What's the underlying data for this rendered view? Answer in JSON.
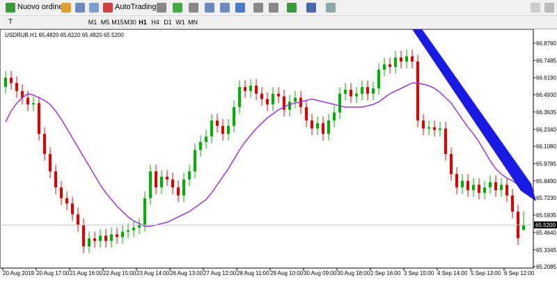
{
  "toolbar": {
    "new_order": "Nuovo ordine",
    "autotrading": "AutoTrading",
    "timeframes": [
      "M1",
      "M5",
      "M15",
      "M30",
      "H1",
      "H4",
      "D1",
      "W1",
      "MN"
    ]
  },
  "chart_data": {
    "type": "candlestick",
    "title": "USDRUB,H1  65.4820 65.6220 65.4820 65.5200",
    "categories": [
      "20 Aug 2019",
      null,
      null,
      null,
      null,
      null,
      "20 Aug 17:00",
      null,
      null,
      null,
      null,
      null,
      "21 Aug 16:00",
      null,
      null,
      null,
      null,
      null,
      "22 Aug 15:00",
      null,
      null,
      null,
      null,
      null,
      "23 Aug 14:00",
      null,
      null,
      null,
      null,
      null,
      "26 Aug 13:00",
      null,
      null,
      null,
      null,
      null,
      "27 Aug 12:00",
      null,
      null,
      null,
      null,
      null,
      "28 Aug 11:00",
      null,
      null,
      null,
      null,
      null,
      "29 Aug 10:00",
      null,
      null,
      null,
      null,
      null,
      "30 Aug 09:00",
      null,
      null,
      null,
      null,
      null,
      "30 Aug 18:00",
      null,
      null,
      null,
      null,
      null,
      "2 Sep 16:00",
      null,
      null,
      null,
      null,
      null,
      "3 Sep 15:00",
      null,
      null,
      null,
      null,
      null,
      "4 Sep 14:00",
      null,
      null,
      null,
      null,
      null,
      "5 Sep 13:00",
      null,
      null,
      null,
      null,
      null,
      "6 Sep 12:00",
      null,
      null,
      null
    ],
    "open": [
      66.55,
      66.62,
      66.58,
      66.52,
      66.47,
      66.42,
      66.43,
      66.2,
      66.05,
      65.92,
      65.8,
      65.72,
      65.68,
      65.6,
      65.52,
      65.36,
      65.42,
      65.4,
      65.44,
      65.4,
      65.45,
      65.43,
      65.47,
      65.48,
      65.5,
      65.52,
      65.72,
      65.92,
      65.8,
      65.88,
      65.86,
      65.8,
      65.74,
      65.86,
      65.92,
      66.08,
      66.14,
      66.18,
      66.3,
      66.26,
      66.2,
      66.26,
      66.4,
      66.55,
      66.52,
      66.56,
      66.5,
      66.46,
      66.42,
      66.5,
      66.48,
      66.38,
      66.44,
      66.47,
      66.4,
      66.3,
      66.24,
      66.28,
      66.2,
      66.3,
      66.36,
      66.5,
      66.53,
      66.48,
      66.5,
      66.55,
      66.5,
      66.54,
      66.68,
      66.72,
      66.7,
      66.77,
      66.74,
      66.78,
      66.74,
      66.3,
      66.24,
      66.25,
      66.23,
      66.24,
      66.05,
      65.9,
      65.8,
      65.85,
      65.78,
      65.82,
      65.76,
      65.8,
      65.84,
      65.78,
      65.82,
      65.74,
      65.62,
      65.482
    ],
    "high": [
      66.67,
      66.67,
      66.63,
      66.57,
      66.52,
      66.48,
      66.48,
      66.25,
      66.1,
      65.97,
      65.85,
      65.77,
      65.73,
      65.65,
      65.57,
      65.47,
      65.47,
      65.49,
      65.49,
      65.5,
      65.5,
      65.52,
      65.53,
      65.55,
      65.57,
      65.77,
      65.97,
      65.97,
      65.93,
      65.93,
      65.91,
      65.85,
      65.91,
      65.97,
      66.13,
      66.19,
      66.23,
      66.35,
      66.35,
      66.31,
      66.31,
      66.45,
      66.6,
      66.6,
      66.61,
      66.61,
      66.55,
      66.51,
      66.55,
      66.55,
      66.53,
      66.49,
      66.52,
      66.52,
      66.45,
      66.35,
      66.33,
      66.33,
      66.35,
      66.41,
      66.55,
      66.58,
      66.58,
      66.55,
      66.6,
      66.6,
      66.59,
      66.73,
      66.77,
      66.77,
      66.82,
      66.82,
      66.83,
      66.83,
      66.79,
      66.35,
      66.3,
      66.3,
      66.29,
      66.29,
      66.1,
      65.95,
      65.9,
      65.9,
      65.87,
      65.87,
      65.85,
      65.89,
      65.89,
      65.87,
      65.87,
      65.79,
      65.67,
      65.622
    ],
    "low": [
      66.5,
      66.53,
      66.47,
      66.42,
      66.37,
      66.37,
      66.15,
      66.0,
      65.87,
      65.75,
      65.67,
      65.63,
      65.55,
      65.47,
      65.31,
      65.31,
      65.35,
      65.35,
      65.35,
      65.35,
      65.38,
      65.38,
      65.42,
      65.43,
      65.45,
      65.47,
      65.67,
      65.75,
      65.75,
      65.81,
      65.75,
      65.69,
      65.69,
      65.81,
      65.87,
      66.03,
      66.09,
      66.13,
      66.21,
      66.15,
      66.15,
      66.21,
      66.35,
      66.47,
      66.47,
      66.45,
      66.41,
      66.37,
      66.37,
      66.43,
      66.33,
      66.33,
      66.39,
      66.35,
      66.25,
      66.19,
      66.19,
      66.15,
      66.15,
      66.25,
      66.31,
      66.45,
      66.43,
      66.43,
      66.45,
      66.45,
      66.45,
      66.49,
      66.63,
      66.65,
      66.65,
      66.69,
      66.69,
      66.69,
      66.25,
      66.19,
      66.19,
      66.18,
      66.18,
      66.0,
      65.85,
      65.75,
      65.75,
      65.73,
      65.73,
      65.71,
      65.71,
      65.75,
      65.73,
      65.73,
      65.69,
      65.57,
      65.37,
      65.482
    ],
    "close": [
      66.62,
      66.58,
      66.52,
      66.47,
      66.42,
      66.43,
      66.2,
      66.05,
      65.92,
      65.8,
      65.72,
      65.68,
      65.6,
      65.52,
      65.36,
      65.42,
      65.4,
      65.44,
      65.4,
      65.45,
      65.43,
      65.47,
      65.48,
      65.5,
      65.52,
      65.72,
      65.92,
      65.8,
      65.88,
      65.86,
      65.8,
      65.74,
      65.86,
      65.92,
      66.08,
      66.14,
      66.18,
      66.3,
      66.26,
      66.2,
      66.26,
      66.4,
      66.55,
      66.52,
      66.56,
      66.5,
      66.46,
      66.42,
      66.5,
      66.48,
      66.38,
      66.44,
      66.47,
      66.4,
      66.3,
      66.24,
      66.28,
      66.2,
      66.3,
      66.36,
      66.5,
      66.53,
      66.48,
      66.5,
      66.55,
      66.5,
      66.54,
      66.68,
      66.72,
      66.7,
      66.77,
      66.74,
      66.78,
      66.74,
      66.3,
      66.24,
      66.25,
      66.23,
      66.24,
      66.05,
      65.9,
      65.8,
      65.85,
      65.78,
      65.82,
      65.76,
      65.8,
      65.84,
      65.78,
      65.82,
      65.74,
      65.62,
      65.42,
      65.52
    ],
    "up_color": "#00b000",
    "down_color": "#e00000",
    "ma": {
      "color": "#9932e0",
      "values": [
        66.29,
        66.37,
        66.43,
        66.47,
        66.5,
        66.49,
        66.47,
        66.45,
        66.42,
        66.37,
        66.31,
        66.24,
        66.17,
        66.1,
        66.03,
        65.96,
        65.89,
        65.82,
        65.76,
        65.71,
        65.66,
        65.62,
        65.58,
        65.55,
        65.53,
        65.51,
        65.51,
        65.52,
        65.53,
        65.54,
        65.56,
        65.58,
        65.6,
        65.62,
        65.65,
        65.68,
        65.71,
        65.76,
        65.82,
        65.88,
        65.94,
        66.01,
        66.08,
        66.14,
        66.19,
        66.24,
        66.28,
        66.32,
        66.35,
        66.38,
        66.4,
        66.42,
        66.43,
        66.44,
        66.45,
        66.46,
        66.45,
        66.44,
        66.43,
        66.42,
        66.41,
        66.4,
        66.4,
        66.4,
        66.4,
        66.41,
        66.42,
        66.44,
        66.47,
        66.5,
        66.52,
        66.54,
        66.56,
        66.58,
        66.58,
        66.57,
        66.56,
        66.54,
        66.51,
        66.47,
        66.43,
        66.37,
        66.31,
        66.25,
        66.2,
        66.14,
        66.07,
        66.0,
        65.94,
        65.9,
        65.87,
        65.85,
        65.82,
        65.79
      ]
    },
    "ylim": [
      65.198,
      66.914
    ],
    "yticks": [
      {
        "value": 66.878,
        "label": "66.8780"
      },
      {
        "value": 66.7485,
        "label": "66.7485"
      },
      {
        "value": 66.619,
        "label": "66.6190"
      },
      {
        "value": 66.493,
        "label": "66.4930"
      },
      {
        "value": 66.3635,
        "label": "66.3635"
      },
      {
        "value": 66.234,
        "label": "66.2340"
      },
      {
        "value": 66.108,
        "label": "66.1080"
      },
      {
        "value": 65.9785,
        "label": "65.9785"
      },
      {
        "value": 65.849,
        "label": "65.8490"
      },
      {
        "value": 65.723,
        "label": "65.7230"
      },
      {
        "value": 65.5935,
        "label": "65.5935"
      },
      {
        "value": 65.464,
        "label": "65.4640"
      },
      {
        "value": 65.3345,
        "label": "65.3345"
      },
      {
        "value": 65.2085,
        "label": "65.2085"
      }
    ],
    "price_label": {
      "value": 65.52,
      "label": "65.5200"
    }
  }
}
